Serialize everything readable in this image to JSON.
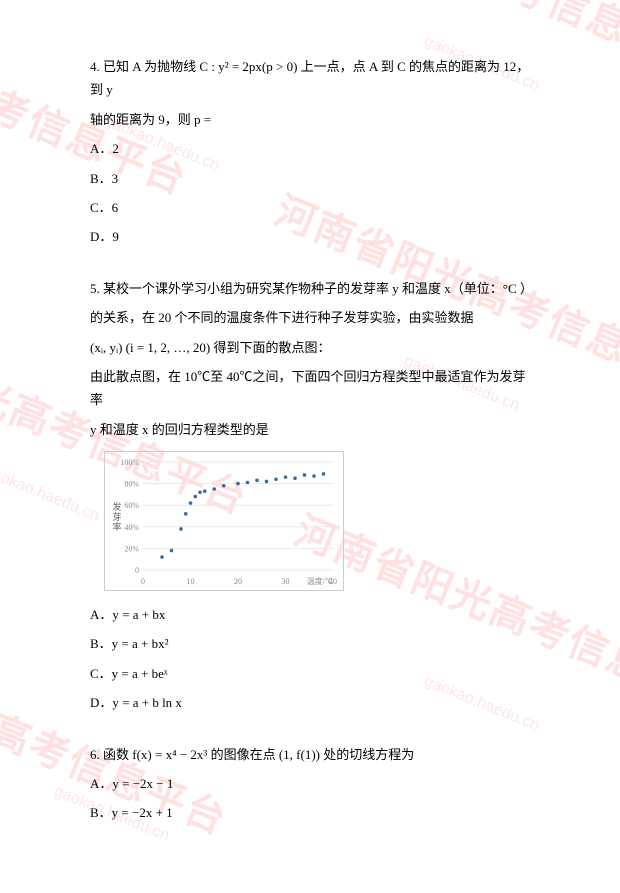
{
  "q4": {
    "text1": "4. 已知 A 为抛物线 C : y² = 2px(p > 0) 上一点，点 A 到 C 的焦点的距离为 12，到 y",
    "text2": "轴的距离为 9，则 p =",
    "options": {
      "a": "A．2",
      "b": "B．3",
      "c": "C．6",
      "d": "D．9"
    }
  },
  "q5": {
    "text1": "5. 某校一个课外学习小组为研究某作物种子的发芽率 y 和温度 x（单位：°C ）",
    "text2": "的关系，在 20 个不同的温度条件下进行种子发芽实验，由实验数据",
    "text3": "(xᵢ, yᵢ) (i = 1, 2, …, 20) 得到下面的散点图：",
    "text4": "由此散点图，在 10℃至 40℃之间，下面四个回归方程类型中最适宜作为发芽率",
    "text5": "y 和温度 x 的回归方程类型的是",
    "chart": {
      "xlabel": "温度/℃",
      "ylabel": "发芽率",
      "ylim": [
        0,
        100
      ],
      "ytick_step": 20,
      "yticks": [
        "0",
        "20%",
        "40%",
        "60%",
        "80%",
        "100%"
      ],
      "xticks": [
        "0",
        "10",
        "20",
        "30",
        "40"
      ],
      "grid_color": "#e8e8e8",
      "point_color": "#3a6aa8",
      "points": [
        [
          4,
          12
        ],
        [
          6,
          18
        ],
        [
          8,
          38
        ],
        [
          9,
          52
        ],
        [
          10,
          62
        ],
        [
          11,
          68
        ],
        [
          12,
          72
        ],
        [
          13,
          73
        ],
        [
          15,
          75
        ],
        [
          17,
          78
        ],
        [
          20,
          80
        ],
        [
          22,
          81
        ],
        [
          24,
          83
        ],
        [
          26,
          82
        ],
        [
          28,
          84
        ],
        [
          30,
          86
        ],
        [
          32,
          85
        ],
        [
          34,
          88
        ],
        [
          36,
          87
        ],
        [
          38,
          89
        ]
      ]
    },
    "options": {
      "a": "A．y = a + bx",
      "b": "B．y = a + bx²",
      "c": "C．y = a + beˣ",
      "d": "D．y = a + b ln x"
    }
  },
  "q6": {
    "text1": "6. 函数 f(x) = x⁴ − 2x³ 的图像在点 (1, f(1)) 处的切线方程为",
    "options": {
      "a": "A．y = −2x − 1",
      "b": "B．y = −2x + 1"
    }
  },
  "watermarks": {
    "big_text": "河南省阳光高考信息平台",
    "small_text": "gaokao.haedu.cn",
    "color_big": "rgba(255,200,200,0.55)",
    "color_small": "rgba(255,210,210,0.55)",
    "angle": 22
  }
}
